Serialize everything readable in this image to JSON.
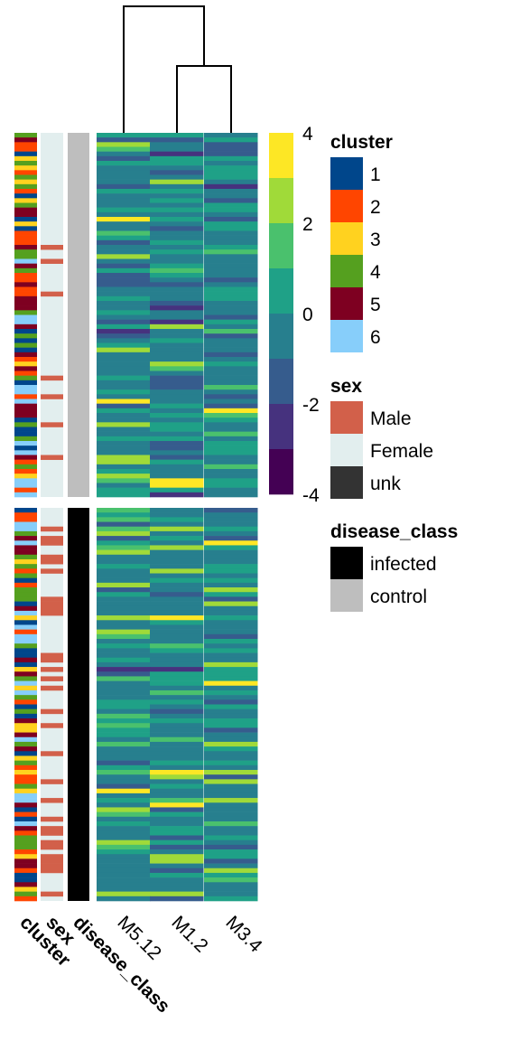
{
  "chart_data": {
    "type": "heatmap",
    "columns": [
      "M5.12",
      "M1.2",
      "M3.4"
    ],
    "column_dendrogram": "M5.12 | (M1.2, M3.4)",
    "annotation_tracks": [
      "cluster",
      "sex",
      "disease_class"
    ],
    "row_groups": [
      {
        "disease_class": "control",
        "rows": 78
      },
      {
        "disease_class": "infected",
        "rows": 84
      }
    ],
    "colorbar": {
      "ticks": [
        "4",
        "2",
        "0",
        "-2",
        "-4"
      ],
      "range": [
        -4,
        4
      ],
      "colors": [
        "#FDE725",
        "#A0DA39",
        "#4AC16D",
        "#1FA187",
        "#277F8E",
        "#365C8D",
        "#46327E",
        "#440154"
      ]
    },
    "legends": {
      "cluster": {
        "title": "cluster",
        "items": [
          {
            "label": "1",
            "color": "#00468B"
          },
          {
            "label": "2",
            "color": "#FF4500"
          },
          {
            "label": "3",
            "color": "#FFD21F"
          },
          {
            "label": "4",
            "color": "#55A01F"
          },
          {
            "label": "5",
            "color": "#7E0021"
          },
          {
            "label": "6",
            "color": "#87CEFA"
          }
        ]
      },
      "sex": {
        "title": "sex",
        "items": [
          {
            "label": "Male",
            "color": "#D2604A"
          },
          {
            "label": "Female",
            "color": "#E2EEEE"
          },
          {
            "label": "unk",
            "color": "#333333"
          }
        ]
      },
      "disease_class": {
        "title": "disease_class",
        "items": [
          {
            "label": "infected",
            "color": "#000000"
          },
          {
            "label": "control",
            "color": "#BEBEBE"
          }
        ]
      }
    }
  }
}
